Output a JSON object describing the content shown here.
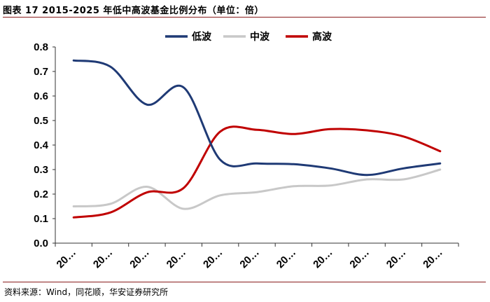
{
  "header": {
    "title": "图表 17 2015-2025 年低中高波基金比例分布（单位：倍）"
  },
  "footer": {
    "source": "资料来源：Wind，同花顺，华安证券研究所"
  },
  "chart_data": {
    "type": "line",
    "categories": [
      "20…",
      "20…",
      "20…",
      "20…",
      "20…",
      "20…",
      "20…",
      "20…",
      "20…",
      "20…",
      "20…"
    ],
    "ylim": [
      0,
      0.8
    ],
    "yticks": [
      "0.0",
      "0.1",
      "0.2",
      "0.3",
      "0.4",
      "0.5",
      "0.6",
      "0.7",
      "0.8"
    ],
    "grid": false,
    "legend_position": "top",
    "series": [
      {
        "name": "低波",
        "color": "#1f3a75",
        "values": [
          0.745,
          0.72,
          0.565,
          0.635,
          0.34,
          0.325,
          0.322,
          0.305,
          0.278,
          0.305,
          0.325
        ]
      },
      {
        "name": "中波",
        "color": "#c8c8c8",
        "values": [
          0.15,
          0.16,
          0.23,
          0.14,
          0.195,
          0.208,
          0.232,
          0.235,
          0.26,
          0.26,
          0.3
        ]
      },
      {
        "name": "高波",
        "color": "#c00000",
        "values": [
          0.105,
          0.125,
          0.207,
          0.225,
          0.455,
          0.462,
          0.445,
          0.465,
          0.46,
          0.435,
          0.375
        ]
      }
    ]
  }
}
